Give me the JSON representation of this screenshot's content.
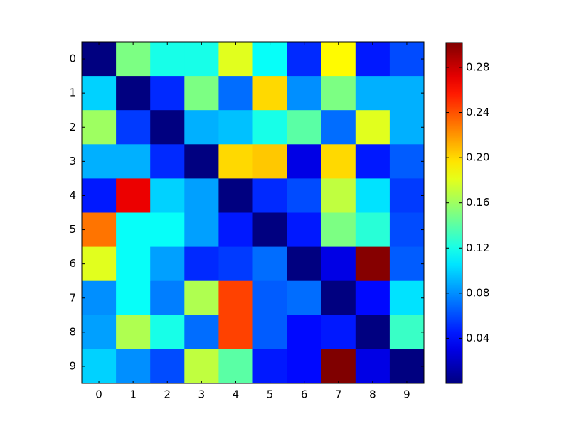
{
  "chart_data": {
    "type": "heatmap",
    "colormap": "jet",
    "x_categories": [
      0,
      1,
      2,
      3,
      4,
      5,
      6,
      7,
      8,
      9
    ],
    "y_categories": [
      0,
      1,
      2,
      3,
      4,
      5,
      6,
      7,
      8,
      9
    ],
    "values": [
      [
        0,
        0.15,
        0.12,
        0.12,
        0.18,
        0.115,
        0.05,
        0.19,
        0.045,
        0.06
      ],
      [
        0.1,
        0,
        0.05,
        0.15,
        0.07,
        0.2,
        0.08,
        0.15,
        0.09,
        0.09
      ],
      [
        0.16,
        0.055,
        0,
        0.09,
        0.095,
        0.12,
        0.14,
        0.07,
        0.18,
        0.09
      ],
      [
        0.09,
        0.09,
        0.05,
        0,
        0.2,
        0.205,
        0.03,
        0.2,
        0.045,
        0.065
      ],
      [
        0.045,
        0.27,
        0.1,
        0.085,
        0,
        0.05,
        0.06,
        0.17,
        0.105,
        0.055
      ],
      [
        0.23,
        0.115,
        0.115,
        0.085,
        0.045,
        0,
        0.045,
        0.15,
        0.125,
        0.06
      ],
      [
        0.18,
        0.115,
        0.085,
        0.05,
        0.055,
        0.07,
        0,
        0.03,
        0.3,
        0.065
      ],
      [
        0.08,
        0.115,
        0.075,
        0.165,
        0.245,
        0.065,
        0.07,
        0,
        0.04,
        0.105
      ],
      [
        0.085,
        0.165,
        0.12,
        0.07,
        0.245,
        0.065,
        0.04,
        0.045,
        0,
        0.13
      ],
      [
        0.1,
        0.08,
        0.06,
        0.17,
        0.14,
        0.045,
        0.04,
        0.302,
        0.03,
        0
      ]
    ],
    "clim": [
      0,
      0.302
    ],
    "cticks": [
      0.04,
      0.08,
      0.12,
      0.16,
      {
        "value": 0.2,
        "label": "0.20"
      },
      0.24,
      0.28
    ]
  }
}
